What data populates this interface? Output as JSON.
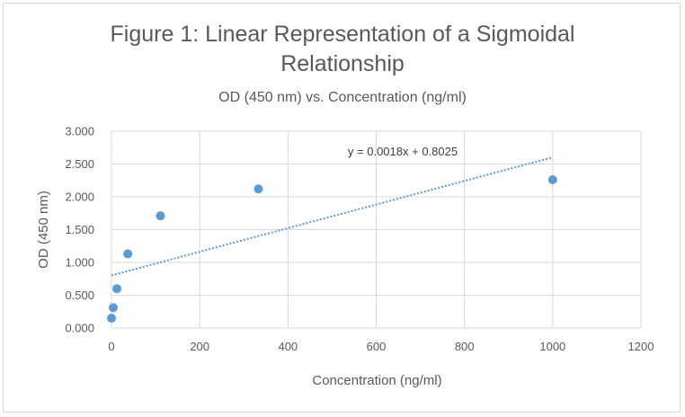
{
  "chart_data": {
    "type": "scatter",
    "title": "Figure 1: Linear Representation of a Sigmoidal Relationship",
    "title_lines": [
      "Figure 1: Linear Representation of a Sigmoidal",
      "Relationship"
    ],
    "subtitle": "OD (450 nm) vs. Concentration (ng/ml)",
    "xlabel": "Concentration (ng/ml)",
    "ylabel": "OD (450 nm)",
    "xlim": [
      0,
      1200
    ],
    "ylim": [
      0,
      3
    ],
    "x_ticks": [
      "0",
      "200",
      "400",
      "600",
      "800",
      "1000",
      "1200"
    ],
    "y_ticks": [
      "0.000",
      "0.500",
      "1.000",
      "1.500",
      "2.000",
      "2.500",
      "3.000"
    ],
    "grid": true,
    "legend": "none",
    "series": [
      {
        "x": [
          0,
          4.1,
          12.3,
          37,
          111,
          333,
          1000
        ],
        "y": [
          0.15,
          0.31,
          0.6,
          1.13,
          1.71,
          2.12,
          2.26
        ],
        "color": "#5b9bd5"
      }
    ],
    "trendline": {
      "label": "y = 0.0018x + 0.8025",
      "slope": 0.0018,
      "intercept": 0.8025,
      "x_range": [
        0,
        1000
      ],
      "color": "#5b9bd5",
      "style": "dotted"
    }
  }
}
